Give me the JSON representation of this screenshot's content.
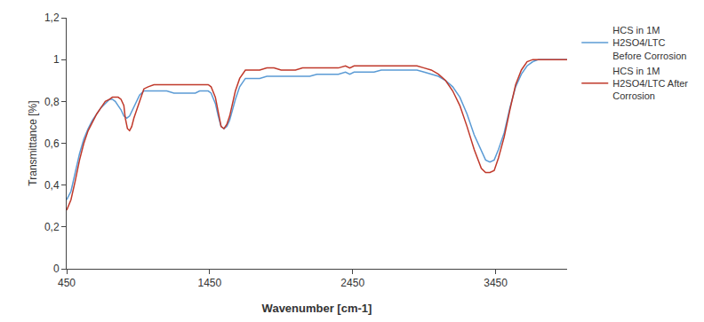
{
  "chart_data": {
    "type": "line",
    "xlabel": "Wavenumber [cm-1]",
    "ylabel": "Transmittance [%]",
    "xlim": [
      450,
      3950
    ],
    "ylim": [
      0,
      1.2
    ],
    "xticks": [
      450,
      1450,
      2450,
      3450
    ],
    "yticks": [
      0,
      {
        "value": 0.2,
        "label": "0,2"
      },
      {
        "value": 0.4,
        "label": "0,4"
      },
      {
        "value": 0.6,
        "label": "0,6"
      },
      {
        "value": 0.8,
        "label": "0,8"
      },
      1,
      {
        "value": 1.2,
        "label": "1,2"
      }
    ],
    "grid": false,
    "legend": "right",
    "series": [
      {
        "name": "HCS in 1M\nH2SO4/LTC\nBefore Corrosion",
        "color": "#5B9BD5",
        "x": [
          450,
          480,
          510,
          540,
          570,
          600,
          630,
          660,
          690,
          720,
          750,
          770,
          790,
          810,
          830,
          850,
          870,
          890,
          910,
          930,
          960,
          990,
          1020,
          1060,
          1100,
          1150,
          1200,
          1250,
          1300,
          1350,
          1380,
          1410,
          1440,
          1460,
          1490,
          1510,
          1530,
          1550,
          1570,
          1590,
          1610,
          1630,
          1660,
          1700,
          1750,
          1800,
          1850,
          1900,
          1950,
          2000,
          2050,
          2100,
          2150,
          2200,
          2250,
          2300,
          2350,
          2400,
          2430,
          2460,
          2500,
          2550,
          2600,
          2650,
          2700,
          2750,
          2800,
          2850,
          2900,
          2950,
          3000,
          3050,
          3100,
          3150,
          3200,
          3250,
          3300,
          3350,
          3380,
          3410,
          3440,
          3470,
          3510,
          3550,
          3590,
          3630,
          3670,
          3710,
          3750,
          3800,
          3850,
          3900,
          3950
        ],
        "values": [
          0.33,
          0.37,
          0.46,
          0.55,
          0.62,
          0.67,
          0.71,
          0.74,
          0.77,
          0.79,
          0.81,
          0.81,
          0.8,
          0.78,
          0.76,
          0.73,
          0.72,
          0.73,
          0.76,
          0.79,
          0.83,
          0.85,
          0.85,
          0.85,
          0.85,
          0.85,
          0.84,
          0.84,
          0.84,
          0.84,
          0.85,
          0.85,
          0.85,
          0.84,
          0.79,
          0.73,
          0.68,
          0.67,
          0.68,
          0.71,
          0.76,
          0.81,
          0.87,
          0.91,
          0.91,
          0.91,
          0.92,
          0.92,
          0.92,
          0.92,
          0.92,
          0.92,
          0.92,
          0.93,
          0.93,
          0.93,
          0.93,
          0.94,
          0.93,
          0.94,
          0.94,
          0.94,
          0.94,
          0.95,
          0.95,
          0.95,
          0.95,
          0.95,
          0.95,
          0.94,
          0.93,
          0.92,
          0.9,
          0.87,
          0.82,
          0.74,
          0.64,
          0.56,
          0.52,
          0.51,
          0.52,
          0.57,
          0.65,
          0.77,
          0.87,
          0.93,
          0.97,
          0.99,
          1.0,
          1.0,
          1.0,
          1.0,
          1.0
        ]
      },
      {
        "name": "HCS in 1M\nH2SO4/LTC After\nCorrosion",
        "color": "#C0392B",
        "x": [
          450,
          480,
          510,
          540,
          570,
          600,
          630,
          660,
          690,
          720,
          750,
          770,
          790,
          810,
          830,
          850,
          860,
          875,
          890,
          905,
          920,
          940,
          960,
          990,
          1020,
          1060,
          1100,
          1150,
          1200,
          1250,
          1300,
          1350,
          1380,
          1410,
          1440,
          1460,
          1490,
          1510,
          1530,
          1550,
          1570,
          1590,
          1610,
          1630,
          1660,
          1700,
          1750,
          1800,
          1850,
          1900,
          1950,
          2000,
          2050,
          2100,
          2150,
          2200,
          2250,
          2300,
          2350,
          2400,
          2430,
          2460,
          2500,
          2550,
          2600,
          2650,
          2700,
          2750,
          2800,
          2850,
          2900,
          2950,
          3000,
          3050,
          3100,
          3150,
          3200,
          3250,
          3300,
          3350,
          3380,
          3410,
          3440,
          3470,
          3510,
          3550,
          3590,
          3630,
          3670,
          3710,
          3750,
          3800,
          3850,
          3900,
          3950
        ],
        "values": [
          0.28,
          0.33,
          0.42,
          0.52,
          0.6,
          0.66,
          0.7,
          0.74,
          0.77,
          0.8,
          0.81,
          0.82,
          0.82,
          0.82,
          0.81,
          0.78,
          0.72,
          0.67,
          0.66,
          0.68,
          0.72,
          0.76,
          0.8,
          0.86,
          0.87,
          0.88,
          0.88,
          0.88,
          0.88,
          0.88,
          0.88,
          0.88,
          0.88,
          0.88,
          0.88,
          0.87,
          0.82,
          0.75,
          0.68,
          0.67,
          0.69,
          0.73,
          0.79,
          0.85,
          0.91,
          0.95,
          0.95,
          0.95,
          0.96,
          0.96,
          0.95,
          0.95,
          0.95,
          0.96,
          0.96,
          0.96,
          0.96,
          0.96,
          0.96,
          0.97,
          0.96,
          0.97,
          0.97,
          0.97,
          0.97,
          0.97,
          0.97,
          0.97,
          0.97,
          0.97,
          0.97,
          0.96,
          0.95,
          0.93,
          0.9,
          0.85,
          0.78,
          0.68,
          0.57,
          0.48,
          0.46,
          0.46,
          0.47,
          0.53,
          0.63,
          0.76,
          0.88,
          0.95,
          0.99,
          1.0,
          1.0,
          1.0,
          1.0,
          1.0,
          1.0
        ]
      }
    ]
  }
}
